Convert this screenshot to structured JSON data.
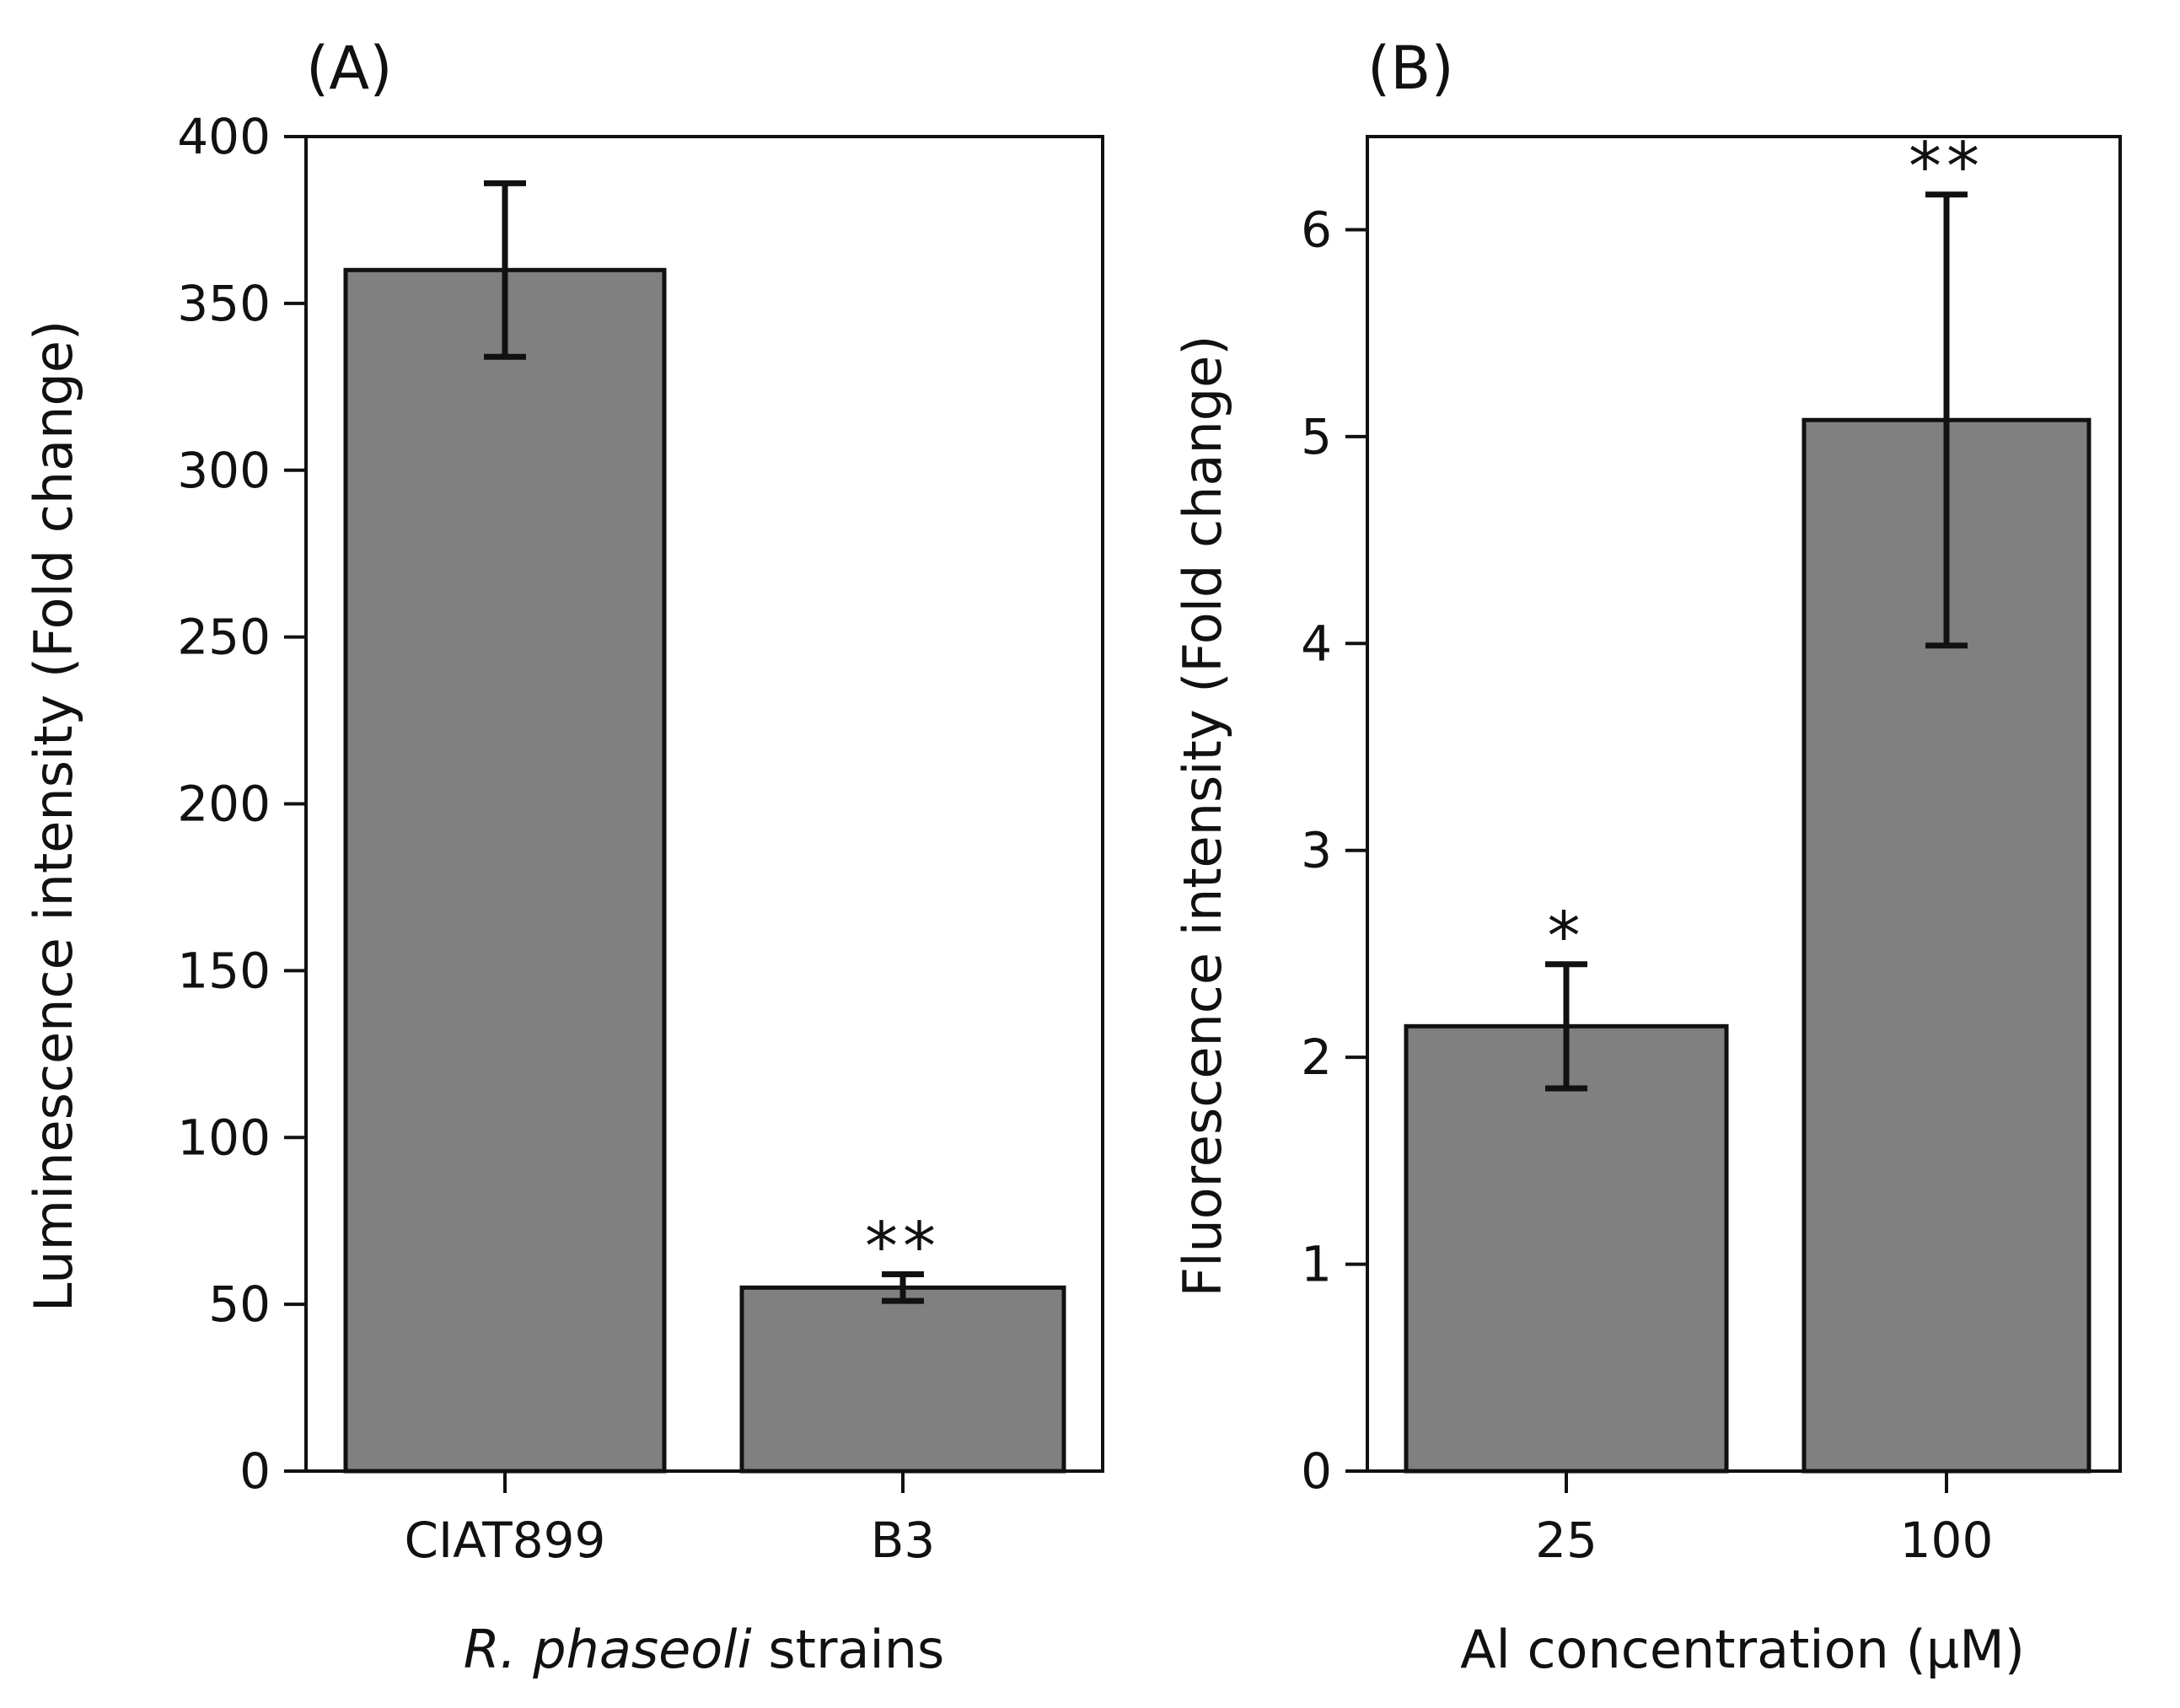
{
  "chart_data": [
    {
      "type": "bar",
      "panel_label": "(A)",
      "categories": [
        "CIAT899",
        "B3"
      ],
      "values": [
        360,
        55
      ],
      "errors": [
        26,
        4
      ],
      "significance": [
        "",
        "**"
      ],
      "ylabel": "Luminescence intensity (Fold change)",
      "xlabel_italic": "R. phaseoli",
      "xlabel_rest": " strains",
      "ylim": [
        0,
        400
      ],
      "yticks": [
        0,
        50,
        100,
        150,
        200,
        250,
        300,
        350,
        400
      ],
      "bar_color": "#808080",
      "grid": false
    },
    {
      "type": "bar",
      "panel_label": "(B)",
      "categories": [
        "25",
        "100"
      ],
      "values": [
        2.15,
        5.08
      ],
      "errors": [
        0.3,
        1.09
      ],
      "significance": [
        "*",
        "**"
      ],
      "ylabel": "Fluorescence intensity (Fold change)",
      "xlabel": "Al concentration (µM)",
      "ylim": [
        0,
        6.45
      ],
      "yticks": [
        0,
        1,
        2,
        3,
        4,
        5,
        6
      ],
      "bar_color": "#808080",
      "grid": false
    }
  ]
}
